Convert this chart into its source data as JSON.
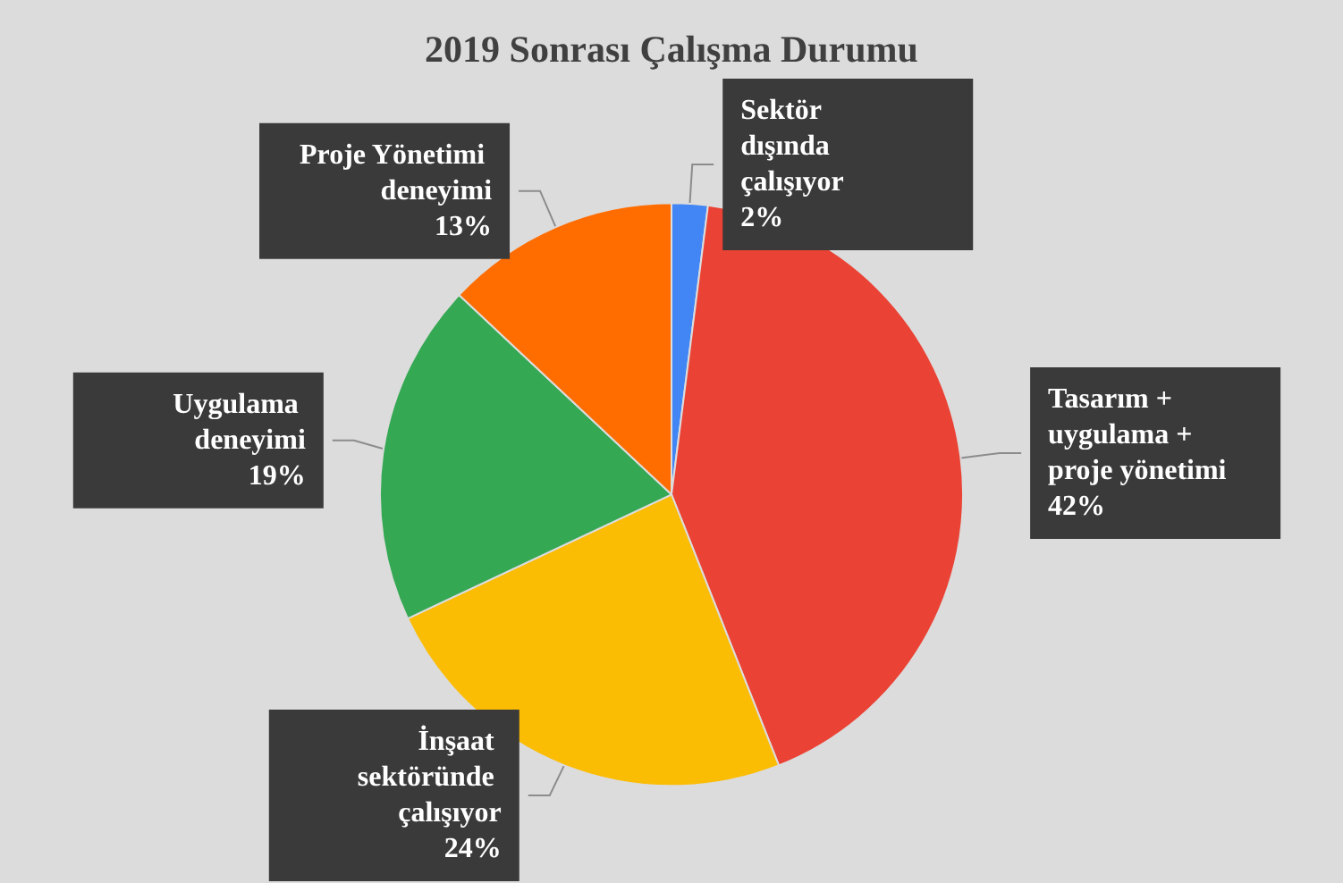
{
  "chart_data": {
    "type": "pie",
    "title": "2019 Sonrası Çalışma Durumu",
    "categories": [
      "Sektör dışında çalışıyor",
      "Tasarım + uygulama + proje yönetimi",
      "İnşaat sektöründe çalışıyor",
      "Uygulama deneyimi",
      "Proje Yönetimi deneyimi"
    ],
    "values": [
      2,
      42,
      24,
      19,
      13
    ],
    "value_labels": [
      "2%",
      "42%",
      "24%",
      "19%",
      "13%"
    ],
    "colors": [
      "#4285f4",
      "#ea4335",
      "#fbbc04",
      "#34a853",
      "#ff6d01"
    ],
    "legend": false
  }
}
